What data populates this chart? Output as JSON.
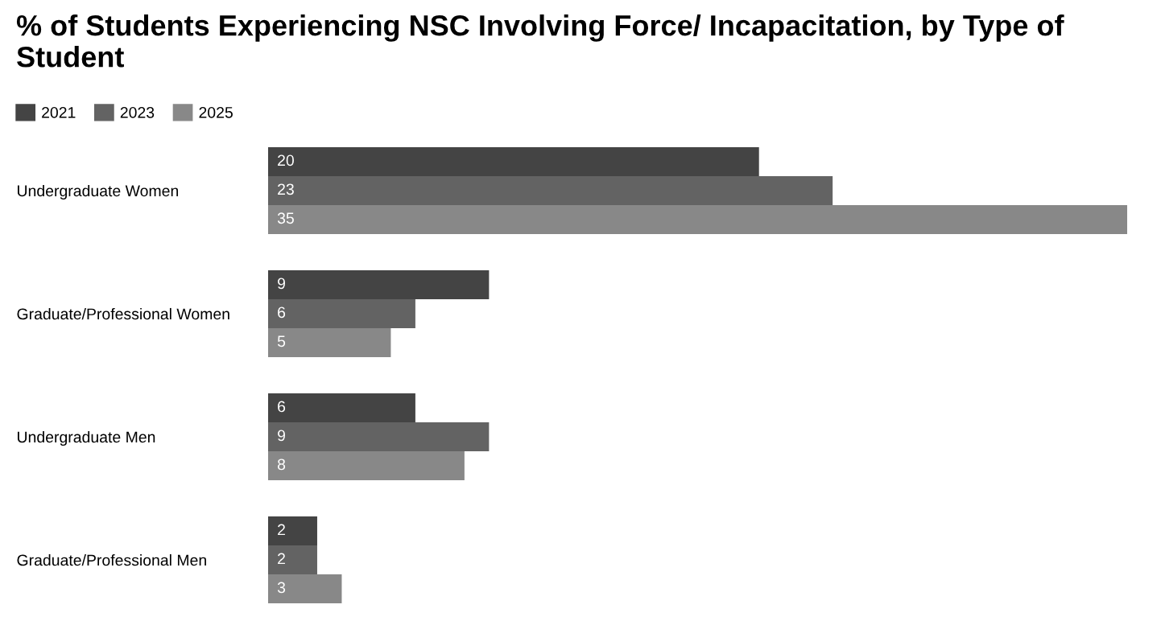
{
  "chart_data": {
    "type": "bar",
    "orientation": "horizontal",
    "title": "% of Students Experiencing NSC Involving Force/ Incapacitation, by Type of Student",
    "categories": [
      "Undergraduate Women",
      "Graduate/Professional Women",
      "Undergraduate Men",
      "Graduate/Professional Men"
    ],
    "series": [
      {
        "name": "2021",
        "color": "#444444",
        "values": [
          20,
          9,
          6,
          2
        ]
      },
      {
        "name": "2023",
        "color": "#636363",
        "values": [
          23,
          6,
          9,
          2
        ]
      },
      {
        "name": "2025",
        "color": "#888888",
        "values": [
          35,
          5,
          8,
          3
        ]
      }
    ],
    "data_labels": true,
    "legend": "top left",
    "tick_labels": "y",
    "grid": false
  }
}
